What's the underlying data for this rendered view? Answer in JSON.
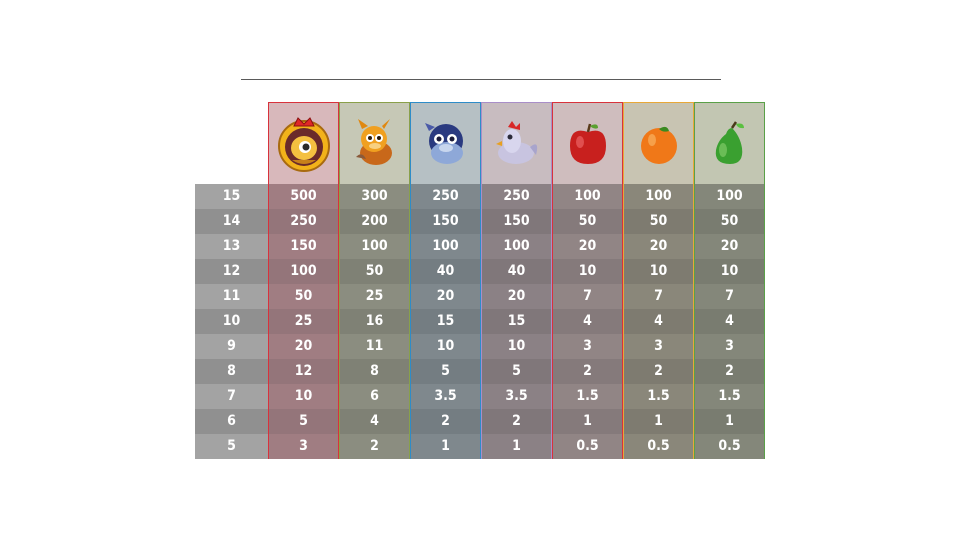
{
  "rows": [
    15,
    14,
    13,
    12,
    11,
    10,
    9,
    8,
    7,
    6,
    5
  ],
  "symbols": [
    {
      "icon": "dragon-king-icon",
      "border": "#d8323c",
      "header": "#d8b8bb",
      "even": "#a07d82",
      "odd": "#94757a",
      "values": [
        "500",
        "250",
        "150",
        "100",
        "50",
        "25",
        "20",
        "12",
        "10",
        "5",
        "3"
      ]
    },
    {
      "icon": "yellow-dragon-icon",
      "border": "#8aa04a",
      "header": "#c6c8b6",
      "even": "#8b8d80",
      "odd": "#7f8175",
      "values": [
        "300",
        "200",
        "100",
        "50",
        "25",
        "16",
        "11",
        "8",
        "6",
        "4",
        "2"
      ]
    },
    {
      "icon": "blue-dragon-icon",
      "border": "#2e8cc8",
      "header": "#b6c0c4",
      "even": "#7f888d",
      "odd": "#747d82",
      "values": [
        "250",
        "150",
        "100",
        "40",
        "20",
        "15",
        "10",
        "5",
        "3.5",
        "2",
        "1"
      ]
    },
    {
      "icon": "rooster-icon",
      "border": "#a98ec8",
      "header": "#c8bcc0",
      "even": "#8b8185",
      "odd": "#80777a",
      "values": [
        "250",
        "150",
        "100",
        "40",
        "20",
        "15",
        "10",
        "5",
        "3.5",
        "2",
        "1"
      ]
    },
    {
      "icon": "apple-icon",
      "border": "#d8323c",
      "header": "#cfbdbe",
      "even": "#918585",
      "odd": "#857a7b",
      "values": [
        "100",
        "50",
        "20",
        "10",
        "7",
        "4",
        "3",
        "2",
        "1.5",
        "1",
        "0.5"
      ]
    },
    {
      "icon": "orange-icon",
      "border": "#e8a838",
      "header": "#c8c4b2",
      "even": "#8a877a",
      "odd": "#7e7b70",
      "values": [
        "100",
        "50",
        "20",
        "10",
        "7",
        "4",
        "3",
        "2",
        "1.5",
        "1",
        "0.5"
      ]
    },
    {
      "icon": "pear-icon",
      "border": "#5aa048",
      "header": "#c2c6b2",
      "even": "#84877a",
      "odd": "#797c70",
      "values": [
        "100",
        "50",
        "20",
        "10",
        "7",
        "4",
        "3",
        "2",
        "1.5",
        "1",
        "0.5"
      ]
    }
  ]
}
